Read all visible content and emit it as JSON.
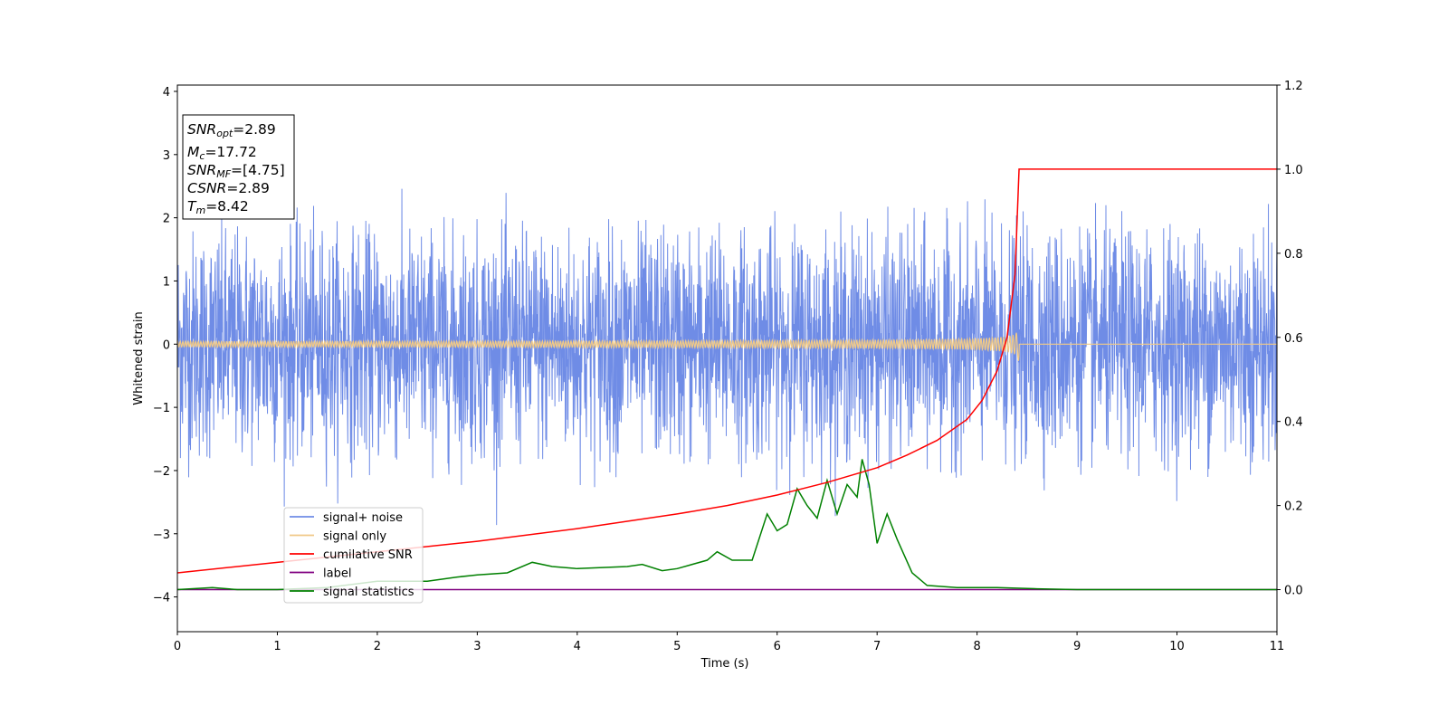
{
  "chart_data": {
    "type": "line",
    "xlabel": "Time (s)",
    "ylabel": "Whitened strain",
    "xlim": [
      0,
      11
    ],
    "ylim_left": [
      -4.55,
      4.1
    ],
    "ylim_right": [
      -0.1,
      1.2
    ],
    "x_ticks": [
      0,
      1,
      2,
      3,
      4,
      5,
      6,
      7,
      8,
      9,
      10,
      11
    ],
    "y_left_ticks": [
      -4,
      -3,
      -2,
      -1,
      0,
      1,
      2,
      3,
      4
    ],
    "y_left_tick_labels": [
      "−4",
      "−3",
      "−2",
      "−1",
      "0",
      "1",
      "2",
      "3",
      "4"
    ],
    "y_right_ticks": [
      0.0,
      0.2,
      0.4,
      0.6,
      0.8,
      1.0,
      1.2
    ],
    "y_right_tick_labels": [
      "0.0",
      "0.2",
      "0.4",
      "0.6",
      "0.8",
      "1.0",
      "1.2"
    ],
    "grid": false,
    "legend_position": "lower-left",
    "info_box": {
      "snr_opt": {
        "main": "SNR",
        "sub": "opt",
        "value": "=2.89"
      },
      "mc": {
        "main": "M",
        "sub": "c",
        "value": "=17.72"
      },
      "snr_mf": {
        "main": "SNR",
        "sub": "MF",
        "value": "=[4.75]"
      },
      "csnr": {
        "main": "CSNR",
        "value": "=2.89"
      },
      "tm": {
        "main": "T",
        "sub": "m",
        "value": "=8.42"
      }
    },
    "series": [
      {
        "name": "signal+ noise",
        "color": "#6f8ce6",
        "axis": "left",
        "kind": "noise",
        "typical_amplitude": 1.5,
        "max": 2.65,
        "min": -3.63
      },
      {
        "name": "signal only",
        "color": "#f0c987",
        "axis": "left",
        "kind": "chirp",
        "merger_time": 8.42,
        "peak_amplitude": 0.35
      },
      {
        "name": "cumilative SNR",
        "color": "#ff0000",
        "axis": "right",
        "x": [
          0,
          1,
          2,
          3,
          4,
          5,
          5.5,
          6,
          6.5,
          7,
          7.3,
          7.6,
          7.9,
          8.05,
          8.2,
          8.3,
          8.38,
          8.42,
          11
        ],
        "y": [
          0.04,
          0.065,
          0.09,
          0.115,
          0.145,
          0.18,
          0.2,
          0.225,
          0.255,
          0.29,
          0.32,
          0.355,
          0.405,
          0.45,
          0.52,
          0.6,
          0.75,
          1.0,
          1.0
        ]
      },
      {
        "name": "label",
        "color": "#800080",
        "axis": "right",
        "x": [
          0,
          11
        ],
        "y": [
          0,
          0
        ]
      },
      {
        "name": "signal statistics",
        "color": "#008000",
        "axis": "right",
        "x": [
          0,
          0.35,
          0.6,
          1.0,
          1.5,
          2.0,
          2.5,
          2.8,
          3.0,
          3.3,
          3.55,
          3.75,
          4.0,
          4.5,
          4.65,
          4.85,
          5.0,
          5.3,
          5.4,
          5.55,
          5.75,
          5.9,
          6.0,
          6.1,
          6.2,
          6.3,
          6.4,
          6.5,
          6.6,
          6.7,
          6.8,
          6.85,
          6.92,
          7.0,
          7.1,
          7.2,
          7.35,
          7.5,
          7.8,
          8.2,
          8.6,
          9.0,
          11
        ],
        "y": [
          0.0,
          0.005,
          0.0,
          0.0,
          0.005,
          0.02,
          0.02,
          0.03,
          0.035,
          0.04,
          0.065,
          0.055,
          0.05,
          0.055,
          0.06,
          0.045,
          0.05,
          0.07,
          0.09,
          0.07,
          0.07,
          0.18,
          0.14,
          0.155,
          0.24,
          0.2,
          0.17,
          0.26,
          0.18,
          0.25,
          0.22,
          0.31,
          0.25,
          0.11,
          0.18,
          0.12,
          0.04,
          0.01,
          0.005,
          0.005,
          0.002,
          0.0,
          0.0
        ]
      }
    ]
  }
}
